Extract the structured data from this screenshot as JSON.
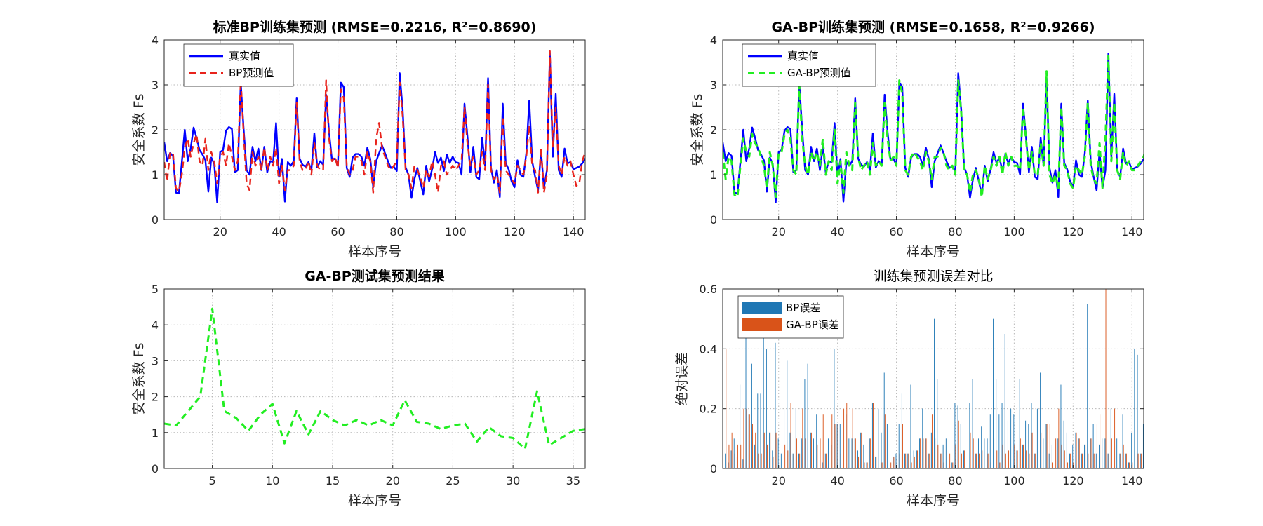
{
  "chart_data": [
    {
      "id": "p1",
      "type": "line",
      "title": "标准BP训练集预测 (RMSE=0.2216, R²=0.8690)",
      "title_bold": true,
      "xlabel": "样本序号",
      "ylabel": "安全系数 Fs",
      "xlim": [
        1,
        144
      ],
      "ylim": [
        0,
        4
      ],
      "xticks": [
        20,
        40,
        60,
        80,
        100,
        120,
        140
      ],
      "yticks": [
        0,
        1,
        2,
        3,
        4
      ],
      "grid": true,
      "legend": "top-left",
      "series": [
        {
          "name": "真实值",
          "color": "#0000ff",
          "style": "solid",
          "width": 2.4,
          "values": [
            1.72,
            1.3,
            1.48,
            1.42,
            0.6,
            0.58,
            1.28,
            2.0,
            1.3,
            1.58,
            2.05,
            1.82,
            1.55,
            1.45,
            1.32,
            0.62,
            1.38,
            1.24,
            0.38,
            1.5,
            1.55,
            1.98,
            2.06,
            2.02,
            1.05,
            1.1,
            3.05,
            2.0,
            1.1,
            1.0,
            1.62,
            1.3,
            1.58,
            1.1,
            1.62,
            1.05,
            1.3,
            1.28,
            2.15,
            0.95,
            1.35,
            0.4,
            1.28,
            1.2,
            1.3,
            2.7,
            1.36,
            1.22,
            1.18,
            1.28,
            1.1,
            1.92,
            1.16,
            1.3,
            1.22,
            2.78,
            1.95,
            1.32,
            1.36,
            1.2,
            3.05,
            2.95,
            1.15,
            0.95,
            1.38,
            1.46,
            1.46,
            1.4,
            1.2,
            1.6,
            1.35,
            0.72,
            1.3,
            1.48,
            1.65,
            1.48,
            1.3,
            1.15,
            1.18,
            1.08,
            3.26,
            2.45,
            1.16,
            1.0,
            0.48,
            0.9,
            1.15,
            0.85,
            0.56,
            1.2,
            0.85,
            1.12,
            1.5,
            1.26,
            1.38,
            1.08,
            1.45,
            1.26,
            1.4,
            1.28,
            1.26,
            1.0,
            2.58,
            1.86,
            1.05,
            1.62,
            0.95,
            0.9,
            1.82,
            1.2,
            3.15,
            1.15,
            0.82,
            1.1,
            0.5,
            2.58,
            1.26,
            1.12,
            0.85,
            0.72,
            1.32,
            1.0,
            0.95,
            1.48,
            2.65,
            1.3,
            0.95,
            0.65,
            1.52,
            0.7,
            1.1,
            3.7,
            1.4,
            2.8,
            1.1,
            0.95,
            1.58,
            1.25,
            1.28,
            1.12,
            1.15,
            1.18,
            1.25,
            1.35,
            1.5
          ]
        },
        {
          "name": "BP预测值",
          "color": "#e8231c",
          "style": "dashed",
          "width": 2.4,
          "values": [
            1.28,
            0.85,
            1.5,
            1.48,
            0.7,
            0.62,
            1.0,
            1.6,
            1.8,
            1.4,
            1.7,
            1.9,
            1.3,
            1.2,
            1.8,
            1.1,
            1.5,
            1.3,
            0.8,
            1.4,
            1.5,
            1.2,
            1.7,
            1.4,
            1.1,
            1.3,
            3.1,
            1.9,
            0.8,
            0.65,
            1.5,
            1.2,
            1.4,
            1.1,
            1.6,
            1.1,
            1.4,
            1.2,
            1.6,
            0.8,
            1.2,
            0.65,
            1.1,
            1.1,
            1.2,
            2.6,
            1.3,
            1.1,
            1.1,
            1.3,
            1.0,
            1.7,
            1.2,
            1.1,
            1.1,
            3.1,
            1.8,
            1.3,
            1.4,
            1.15,
            2.9,
            2.7,
            1.2,
            1.0,
            1.1,
            1.4,
            1.4,
            1.3,
            1.0,
            1.5,
            1.3,
            0.6,
            1.8,
            2.15,
            1.6,
            1.4,
            1.2,
            1.1,
            1.2,
            1.3,
            3.05,
            2.3,
            1.1,
            1.0,
            0.7,
            1.2,
            1.1,
            0.95,
            0.7,
            1.1,
            0.95,
            1.3,
            1.0,
            0.6,
            1.2,
            1.3,
            1.0,
            1.1,
            1.2,
            1.1,
            1.2,
            1.3,
            2.5,
            1.7,
            1.2,
            1.4,
            1.0,
            1.1,
            1.5,
            1.1,
            3.0,
            1.1,
            0.9,
            1.0,
            0.6,
            2.3,
            1.1,
            1.0,
            0.9,
            0.8,
            1.2,
            1.1,
            1.0,
            1.4,
            2.1,
            1.2,
            1.1,
            0.6,
            1.6,
            0.6,
            1.0,
            3.75,
            1.6,
            2.5,
            1.2,
            1.0,
            1.4,
            1.2,
            1.3,
            1.0,
            0.75,
            0.8,
            1.3,
            1.5,
            1.5
          ]
        }
      ]
    },
    {
      "id": "p2",
      "type": "line",
      "title": "GA-BP训练集预测 (RMSE=0.1658, R²=0.9266)",
      "title_bold": true,
      "xlabel": "样本序号",
      "ylabel": "安全系数 Fs",
      "xlim": [
        1,
        144
      ],
      "ylim": [
        0,
        4
      ],
      "xticks": [
        20,
        40,
        60,
        80,
        100,
        120,
        140
      ],
      "yticks": [
        0,
        1,
        2,
        3,
        4
      ],
      "grid": true,
      "legend": "top-left",
      "series": [
        {
          "name": "真实值",
          "color": "#0000ff",
          "style": "solid",
          "width": 2.4,
          "values": [
            1.72,
            1.3,
            1.48,
            1.42,
            0.6,
            0.58,
            1.28,
            2.0,
            1.3,
            1.58,
            2.05,
            1.82,
            1.55,
            1.45,
            1.32,
            0.62,
            1.38,
            1.24,
            0.38,
            1.5,
            1.55,
            1.98,
            2.06,
            2.02,
            1.05,
            1.1,
            3.05,
            2.0,
            1.1,
            1.0,
            1.62,
            1.3,
            1.58,
            1.1,
            1.62,
            1.05,
            1.3,
            1.28,
            2.15,
            0.95,
            1.35,
            0.4,
            1.28,
            1.2,
            1.3,
            2.7,
            1.36,
            1.22,
            1.18,
            1.28,
            1.1,
            1.92,
            1.16,
            1.3,
            1.22,
            2.78,
            1.95,
            1.32,
            1.36,
            1.2,
            3.05,
            2.95,
            1.15,
            0.95,
            1.38,
            1.46,
            1.46,
            1.4,
            1.2,
            1.6,
            1.35,
            0.72,
            1.3,
            1.48,
            1.65,
            1.48,
            1.3,
            1.15,
            1.18,
            1.08,
            3.26,
            2.45,
            1.16,
            1.0,
            0.48,
            0.9,
            1.15,
            0.85,
            0.56,
            1.2,
            0.85,
            1.12,
            1.5,
            1.26,
            1.38,
            1.08,
            1.45,
            1.26,
            1.4,
            1.28,
            1.26,
            1.0,
            2.58,
            1.86,
            1.05,
            1.62,
            0.95,
            0.9,
            1.82,
            1.2,
            3.15,
            1.15,
            0.82,
            1.1,
            0.5,
            2.58,
            1.26,
            1.12,
            0.85,
            0.72,
            1.32,
            1.0,
            0.95,
            1.48,
            2.65,
            1.3,
            0.95,
            0.65,
            1.52,
            0.7,
            1.1,
            3.7,
            1.4,
            2.8,
            1.1,
            0.95,
            1.58,
            1.25,
            1.28,
            1.12,
            1.15,
            1.18,
            1.25,
            1.35,
            1.5
          ]
        },
        {
          "name": "GA-BP预测值",
          "color": "#22ee22",
          "style": "dashed",
          "width": 3.0,
          "values": [
            1.5,
            0.9,
            1.4,
            1.3,
            0.55,
            0.5,
            1.2,
            1.8,
            1.5,
            1.4,
            1.9,
            1.7,
            1.6,
            1.4,
            1.2,
            0.7,
            1.5,
            1.2,
            0.5,
            1.5,
            1.5,
            1.9,
            2.0,
            1.8,
            1.1,
            1.0,
            3.0,
            1.8,
            1.2,
            1.0,
            1.5,
            1.3,
            1.5,
            1.2,
            1.8,
            1.0,
            1.3,
            1.1,
            2.0,
            0.8,
            1.3,
            0.6,
            1.5,
            1.2,
            1.1,
            2.6,
            1.4,
            1.1,
            1.2,
            1.3,
            1.0,
            1.7,
            1.2,
            1.3,
            1.2,
            2.6,
            1.8,
            1.3,
            1.4,
            1.2,
            3.1,
            2.8,
            1.1,
            1.0,
            1.4,
            1.5,
            1.4,
            1.3,
            1.1,
            1.5,
            1.3,
            0.9,
            1.4,
            1.4,
            1.6,
            1.5,
            1.2,
            1.1,
            1.2,
            1.0,
            3.1,
            2.4,
            1.1,
            1.0,
            0.6,
            1.0,
            1.1,
            0.9,
            0.5,
            1.2,
            0.9,
            1.1,
            1.4,
            1.2,
            1.4,
            1.0,
            1.5,
            1.2,
            1.4,
            1.2,
            1.2,
            1.1,
            2.5,
            1.8,
            1.1,
            1.5,
            1.0,
            1.0,
            1.7,
            1.2,
            3.3,
            1.0,
            0.8,
            1.0,
            0.7,
            2.5,
            1.2,
            1.1,
            0.8,
            0.7,
            1.2,
            1.1,
            1.0,
            1.4,
            2.6,
            1.2,
            0.9,
            0.8,
            1.7,
            0.7,
            1.8,
            3.65,
            1.3,
            2.6,
            1.1,
            0.9,
            1.5,
            1.2,
            1.3,
            1.1,
            1.1,
            1.2,
            1.3,
            1.4,
            1.7
          ]
        }
      ]
    },
    {
      "id": "p3",
      "type": "line",
      "title": "GA-BP测试集预测结果",
      "title_bold": true,
      "xlabel": "样本序号",
      "ylabel": "安全系数 Fs",
      "xlim": [
        1,
        36
      ],
      "ylim": [
        0,
        5
      ],
      "xticks": [
        5,
        10,
        15,
        20,
        25,
        30,
        35
      ],
      "yticks": [
        0,
        1,
        2,
        3,
        4,
        5
      ],
      "grid": true,
      "series": [
        {
          "color": "#22ee22",
          "style": "dashed",
          "width": 3.0,
          "values": [
            1.25,
            1.2,
            1.6,
            2.0,
            4.45,
            1.6,
            1.4,
            1.05,
            1.5,
            1.8,
            0.7,
            1.6,
            0.95,
            1.6,
            1.35,
            1.2,
            1.35,
            1.2,
            1.35,
            1.2,
            1.9,
            1.3,
            1.25,
            1.1,
            1.2,
            1.25,
            0.75,
            1.15,
            0.9,
            0.85,
            0.55,
            2.15,
            0.65,
            0.85,
            1.05,
            1.1,
            0.55
          ]
        }
      ]
    },
    {
      "id": "p4",
      "type": "bar",
      "title": "训练集预测误差对比",
      "title_bold": false,
      "xlabel": "样本序号",
      "ylabel": "绝对误差",
      "xlim": [
        1,
        144
      ],
      "ylim": [
        0,
        0.6
      ],
      "xticks": [
        20,
        40,
        60,
        80,
        100,
        120,
        140
      ],
      "yticks": [
        0,
        0.2,
        0.4,
        0.6
      ],
      "ytick_labels": [
        "0",
        "0.2",
        "0.4",
        "0.6"
      ],
      "grid": true,
      "legend": "top-left",
      "series": [
        {
          "name": "BP误差",
          "color": "#1f77b4",
          "values": [
            0.37,
            0.05,
            0.02,
            0.06,
            0.1,
            0.04,
            0.28,
            0.03,
            0.5,
            0.18,
            0.35,
            0.08,
            0.25,
            0.25,
            0.48,
            0.4,
            0.12,
            0.06,
            0.42,
            0.1,
            0.05,
            0.2,
            0.36,
            0.12,
            0.05,
            0.2,
            0.05,
            0.1,
            0.3,
            0.35,
            0.12,
            0.1,
            0.18,
            0.0,
            0.02,
            0.05,
            0.1,
            0.08,
            0.4,
            0.15,
            0.15,
            0.25,
            0.18,
            0.1,
            0.1,
            0.1,
            0.06,
            0.12,
            0.08,
            0.02,
            0.1,
            0.22,
            0.04,
            0.2,
            0.12,
            0.32,
            0.15,
            0.02,
            0.04,
            0.05,
            0.15,
            0.25,
            0.05,
            0.05,
            0.28,
            0.06,
            0.06,
            0.1,
            0.2,
            0.1,
            0.05,
            0.12,
            0.5,
            0.3,
            0.05,
            0.08,
            0.1,
            0.05,
            0.02,
            0.22,
            0.21,
            0.15,
            0.06,
            0.0,
            0.22,
            0.3,
            0.05,
            0.1,
            0.14,
            0.1,
            0.1,
            0.18,
            0.5,
            0.3,
            0.18,
            0.22,
            0.45,
            0.16,
            0.2,
            0.18,
            0.06,
            0.3,
            0.08,
            0.16,
            0.15,
            0.22,
            0.05,
            0.2,
            0.32,
            0.1,
            0.15,
            0.05,
            0.08,
            0.1,
            0.1,
            0.28,
            0.16,
            0.12,
            0.05,
            0.08,
            0.12,
            0.1,
            0.05,
            0.08,
            0.55,
            0.1,
            0.15,
            0.05,
            0.08,
            0.1,
            0.1,
            0.05,
            0.2,
            0.3,
            0.1,
            0.05,
            0.18,
            0.05,
            0.02,
            0.12,
            0.4,
            0.38,
            0.05,
            0.15
          ]
        },
        {
          "name": "GA-BP误差",
          "color": "#d95319",
          "values": [
            0.22,
            0.4,
            0.08,
            0.12,
            0.05,
            0.08,
            0.08,
            0.2,
            0.2,
            0.18,
            0.15,
            0.12,
            0.05,
            0.05,
            0.12,
            0.08,
            0.12,
            0.04,
            0.12,
            0.0,
            0.05,
            0.08,
            0.06,
            0.22,
            0.05,
            0.1,
            0.05,
            0.2,
            0.1,
            0.0,
            0.12,
            0.0,
            0.08,
            0.1,
            0.18,
            0.05,
            0.0,
            0.18,
            0.15,
            0.15,
            0.05,
            0.2,
            0.22,
            0.0,
            0.2,
            0.1,
            0.04,
            0.12,
            0.02,
            0.02,
            0.1,
            0.22,
            0.04,
            0.0,
            0.02,
            0.18,
            0.15,
            0.02,
            0.04,
            0.0,
            0.05,
            0.15,
            0.05,
            0.05,
            0.02,
            0.04,
            0.06,
            0.1,
            0.1,
            0.1,
            0.05,
            0.18,
            0.1,
            0.08,
            0.05,
            0.02,
            0.1,
            0.05,
            0.02,
            0.08,
            0.16,
            0.05,
            0.06,
            0.0,
            0.12,
            0.1,
            0.05,
            0.05,
            0.06,
            0.0,
            0.05,
            0.02,
            0.1,
            0.06,
            0.02,
            0.08,
            0.05,
            0.06,
            0.0,
            0.08,
            0.06,
            0.1,
            0.08,
            0.06,
            0.05,
            0.12,
            0.05,
            0.1,
            0.12,
            0.0,
            0.15,
            0.15,
            0.02,
            0.1,
            0.2,
            0.08,
            0.06,
            0.02,
            0.05,
            0.02,
            0.12,
            0.1,
            0.05,
            0.08,
            0.05,
            0.1,
            0.05,
            0.15,
            0.18,
            0.0,
            0.7,
            0.05,
            0.1,
            0.2,
            0.0,
            0.05,
            0.08,
            0.05,
            0.02,
            0.02,
            0.0,
            0.05,
            0.05,
            0.2
          ]
        }
      ]
    }
  ]
}
